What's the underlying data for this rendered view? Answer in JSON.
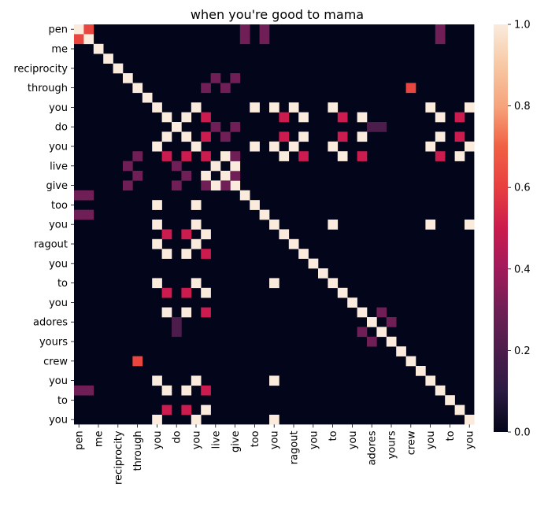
{
  "chart_data": {
    "type": "heatmap",
    "title": "when you're good to mama",
    "labels": [
      "pen",
      "blank",
      "me",
      "blank",
      "reciprocity",
      "blank",
      "through",
      "blank",
      "you",
      "blank",
      "do",
      "blank",
      "you",
      "blank",
      "live",
      "blank",
      "give",
      "blank",
      "too",
      "blank",
      "you",
      "blank",
      "ragout",
      "blank",
      "you",
      "blank",
      "to",
      "blank",
      "you",
      "blank",
      "adores",
      "blank",
      "yours",
      "blank",
      "crew",
      "blank",
      "you",
      "blank",
      "to",
      "blank",
      "you"
    ],
    "shown_y_ticks": [
      "pen",
      "me",
      "reciprocity",
      "through",
      "you",
      "do",
      "you",
      "live",
      "give",
      "too",
      "you",
      "ragout",
      "you",
      "to",
      "you",
      "adores",
      "yours",
      "crew",
      "you",
      "to",
      "you"
    ],
    "shown_x_ticks": [
      "pen",
      "me",
      "reciprocity",
      "through",
      "you",
      "do",
      "you",
      "live",
      "give",
      "too",
      "you",
      "ragout",
      "you",
      "to",
      "you",
      "adores",
      "yours",
      "crew",
      "you",
      "to",
      "you"
    ],
    "colorbar": {
      "min": 0.0,
      "max": 1.0,
      "ticks": [
        "0.0",
        "0.2",
        "0.4",
        "0.6",
        "0.8",
        "1.0"
      ]
    },
    "colormap": [
      "#03051a",
      "#2b1a42",
      "#4c1d4b",
      "#6f1e56",
      "#a11a5b",
      "#cb1b4f",
      "#e83f3f",
      "#f06043",
      "#f6a47c",
      "#f7c8a4",
      "#faebdd"
    ],
    "n": 41,
    "cells": [
      [
        0,
        0,
        1.0
      ],
      [
        0,
        1,
        0.62
      ],
      [
        1,
        0,
        0.62
      ],
      [
        1,
        1,
        1.0
      ],
      [
        0,
        17,
        0.3
      ],
      [
        0,
        37,
        0.3
      ],
      [
        1,
        17,
        0.3
      ],
      [
        1,
        37,
        0.3
      ],
      [
        2,
        2,
        1.0
      ],
      [
        3,
        3,
        1.0
      ],
      [
        4,
        4,
        1.0
      ],
      [
        5,
        5,
        1.0
      ],
      [
        6,
        6,
        1.0
      ],
      [
        6,
        34,
        0.62
      ],
      [
        7,
        7,
        1.0
      ],
      [
        6,
        13,
        0.3
      ],
      [
        6,
        15,
        0.3
      ],
      [
        8,
        8,
        1.0
      ],
      [
        8,
        12,
        1.0
      ],
      [
        8,
        18,
        1.0
      ],
      [
        8,
        22,
        1.0
      ],
      [
        8,
        26,
        1.0
      ],
      [
        8,
        36,
        1.0
      ],
      [
        8,
        40,
        1.0
      ],
      [
        9,
        9,
        1.0
      ],
      [
        9,
        11,
        1.0
      ],
      [
        9,
        13,
        0.5
      ],
      [
        9,
        21,
        0.5
      ],
      [
        9,
        23,
        1.0
      ],
      [
        9,
        27,
        0.5
      ],
      [
        9,
        29,
        1.0
      ],
      [
        9,
        37,
        1.0
      ],
      [
        9,
        39,
        0.5
      ],
      [
        10,
        10,
        1.0
      ],
      [
        10,
        14,
        0.3
      ],
      [
        10,
        16,
        0.3
      ],
      [
        10,
        30,
        0.2
      ],
      [
        10,
        31,
        0.2
      ],
      [
        11,
        9,
        0.5
      ],
      [
        11,
        11,
        1.0
      ],
      [
        11,
        13,
        0.5
      ],
      [
        11,
        21,
        0.5
      ],
      [
        11,
        23,
        1.0
      ],
      [
        11,
        27,
        0.5
      ],
      [
        11,
        29,
        1.0
      ],
      [
        11,
        37,
        1.0
      ],
      [
        11,
        39,
        0.5
      ],
      [
        12,
        8,
        1.0
      ],
      [
        12,
        12,
        1.0
      ],
      [
        12,
        18,
        1.0
      ],
      [
        12,
        22,
        1.0
      ],
      [
        12,
        26,
        1.0
      ],
      [
        12,
        36,
        1.0
      ],
      [
        12,
        40,
        1.0
      ],
      [
        13,
        9,
        1.0
      ],
      [
        13,
        11,
        1.0
      ],
      [
        13,
        13,
        0.5
      ],
      [
        13,
        21,
        1.0
      ],
      [
        13,
        23,
        0.5
      ],
      [
        13,
        27,
        1.0
      ],
      [
        13,
        29,
        0.5
      ],
      [
        13,
        37,
        0.5
      ],
      [
        13,
        39,
        1.0
      ],
      [
        14,
        14,
        1.0
      ],
      [
        14,
        5,
        0.3
      ],
      [
        15,
        15,
        1.0
      ],
      [
        15,
        13,
        1.0
      ],
      [
        16,
        16,
        1.0
      ],
      [
        16,
        15,
        0.3
      ],
      [
        17,
        17,
        1.0
      ],
      [
        18,
        18,
        1.0
      ],
      [
        14,
        16,
        1.0
      ],
      [
        16,
        14,
        1.0
      ],
      [
        15,
        11,
        0.3
      ],
      [
        16,
        13,
        0.3
      ],
      [
        16,
        5,
        0.3
      ],
      [
        19,
        0,
        0.3
      ],
      [
        19,
        1,
        0.3
      ],
      [
        37,
        0,
        0.3
      ],
      [
        37,
        1,
        0.3
      ],
      [
        20,
        20,
        1.0
      ],
      [
        20,
        8,
        1.0
      ],
      [
        20,
        12,
        1.0
      ],
      [
        20,
        26,
        1.0
      ],
      [
        20,
        36,
        1.0
      ],
      [
        20,
        40,
        1.0
      ],
      [
        22,
        22,
        1.0
      ],
      [
        23,
        23,
        1.0
      ],
      [
        24,
        24,
        1.0
      ],
      [
        25,
        25,
        1.0
      ],
      [
        26,
        26,
        1.0
      ],
      [
        27,
        27,
        1.0
      ],
      [
        28,
        28,
        1.0
      ],
      [
        29,
        29,
        1.0
      ],
      [
        30,
        30,
        1.0
      ],
      [
        31,
        31,
        1.0
      ],
      [
        32,
        32,
        1.0
      ],
      [
        33,
        33,
        1.0
      ],
      [
        34,
        34,
        1.0
      ],
      [
        35,
        35,
        1.0
      ],
      [
        36,
        36,
        1.0
      ],
      [
        37,
        37,
        1.0
      ],
      [
        38,
        38,
        1.0
      ],
      [
        39,
        39,
        1.0
      ],
      [
        40,
        40,
        1.0
      ],
      [
        21,
        21,
        1.0
      ],
      [
        19,
        19,
        1.0
      ],
      [
        30,
        32,
        0.3
      ],
      [
        31,
        29,
        0.3
      ],
      [
        32,
        30,
        0.3
      ],
      [
        34,
        6,
        0.62
      ]
    ]
  }
}
